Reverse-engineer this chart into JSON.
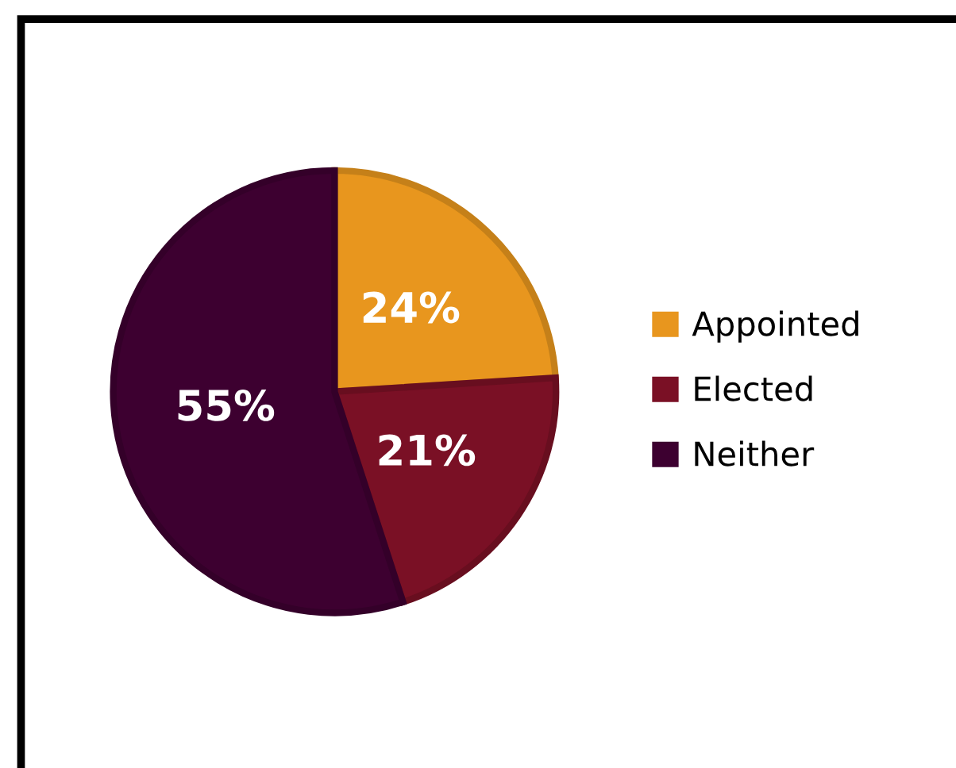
{
  "chart_data": {
    "type": "pie",
    "categories": [
      "Appointed",
      "Elected",
      "Neither"
    ],
    "values": [
      24,
      21,
      55
    ],
    "colors": [
      "#e8961e",
      "#7a1025",
      "#3d0030"
    ],
    "value_labels": [
      "24%",
      "21%",
      "55%"
    ],
    "legend": "right"
  }
}
